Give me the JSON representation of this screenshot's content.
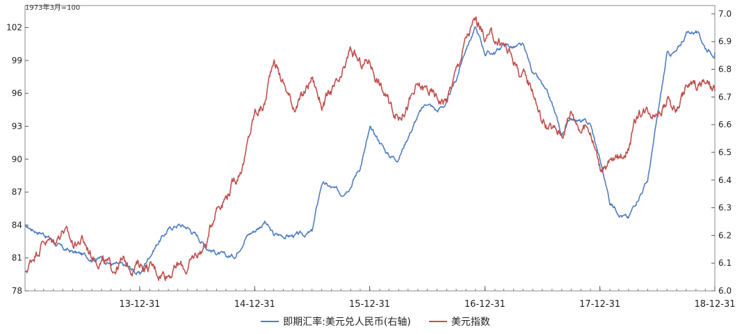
{
  "unit_label": "1973年3月=100",
  "chart_data": {
    "type": "line",
    "x_tick_labels": [
      "13-12-31",
      "14-12-31",
      "15-12-31",
      "16-12-31",
      "17-12-31",
      "18-12-31"
    ],
    "x_range": [
      "2013-01-01",
      "2018-12-31"
    ],
    "y_left": {
      "ticks": [
        78,
        81,
        84,
        87,
        90,
        93,
        96,
        99,
        102
      ],
      "range": [
        78,
        104
      ]
    },
    "y_right": {
      "ticks": [
        6.0,
        6.1,
        6.2,
        6.3,
        6.4,
        6.5,
        6.6,
        6.7,
        6.8,
        6.9,
        7.0
      ],
      "range": [
        6.0,
        7.03
      ]
    },
    "series": [
      {
        "name": "即期汇率:美元兑人民币(右轴)",
        "axis": "right",
        "color": "#4f7dbf",
        "points": [
          [
            "2013-01-01",
            6.23
          ],
          [
            "2013-02-01",
            6.22
          ],
          [
            "2013-03-01",
            6.21
          ],
          [
            "2013-04-01",
            6.18
          ],
          [
            "2013-05-01",
            6.15
          ],
          [
            "2013-06-01",
            6.14
          ],
          [
            "2013-07-01",
            6.13
          ],
          [
            "2013-08-01",
            6.12
          ],
          [
            "2013-09-01",
            6.12
          ],
          [
            "2013-10-01",
            6.1
          ],
          [
            "2013-11-01",
            6.09
          ],
          [
            "2013-12-01",
            6.08
          ],
          [
            "2014-01-01",
            6.06
          ],
          [
            "2014-02-01",
            6.13
          ],
          [
            "2014-03-01",
            6.18
          ],
          [
            "2014-04-01",
            6.22
          ],
          [
            "2014-05-01",
            6.24
          ],
          [
            "2014-06-01",
            6.23
          ],
          [
            "2014-07-01",
            6.2
          ],
          [
            "2014-08-01",
            6.16
          ],
          [
            "2014-09-01",
            6.14
          ],
          [
            "2014-10-01",
            6.12
          ],
          [
            "2014-11-01",
            6.13
          ],
          [
            "2014-12-01",
            6.2
          ],
          [
            "2015-01-01",
            6.22
          ],
          [
            "2015-02-01",
            6.25
          ],
          [
            "2015-03-01",
            6.2
          ],
          [
            "2015-04-01",
            6.2
          ],
          [
            "2015-05-01",
            6.2
          ],
          [
            "2015-06-01",
            6.2
          ],
          [
            "2015-07-01",
            6.21
          ],
          [
            "2015-08-01",
            6.39
          ],
          [
            "2015-09-01",
            6.37
          ],
          [
            "2015-10-01",
            6.35
          ],
          [
            "2015-11-01",
            6.39
          ],
          [
            "2015-12-01",
            6.45
          ],
          [
            "2016-01-01",
            6.58
          ],
          [
            "2016-02-01",
            6.54
          ],
          [
            "2016-03-01",
            6.49
          ],
          [
            "2016-04-01",
            6.48
          ],
          [
            "2016-05-01",
            6.56
          ],
          [
            "2016-06-01",
            6.63
          ],
          [
            "2016-07-01",
            6.68
          ],
          [
            "2016-08-01",
            6.65
          ],
          [
            "2016-09-01",
            6.68
          ],
          [
            "2016-10-01",
            6.76
          ],
          [
            "2016-11-01",
            6.88
          ],
          [
            "2016-12-01",
            6.95
          ],
          [
            "2017-01-01",
            6.86
          ],
          [
            "2017-02-01",
            6.86
          ],
          [
            "2017-03-01",
            6.89
          ],
          [
            "2017-04-01",
            6.88
          ],
          [
            "2017-05-01",
            6.88
          ],
          [
            "2017-06-01",
            6.79
          ],
          [
            "2017-07-01",
            6.74
          ],
          [
            "2017-08-01",
            6.67
          ],
          [
            "2017-09-01",
            6.56
          ],
          [
            "2017-10-01",
            6.63
          ],
          [
            "2017-11-01",
            6.61
          ],
          [
            "2017-12-01",
            6.6
          ],
          [
            "2018-01-01",
            6.47
          ],
          [
            "2018-02-01",
            6.32
          ],
          [
            "2018-03-01",
            6.29
          ],
          [
            "2018-04-01",
            6.26
          ],
          [
            "2018-05-01",
            6.34
          ],
          [
            "2018-06-01",
            6.4
          ],
          [
            "2018-07-01",
            6.62
          ],
          [
            "2018-08-01",
            6.85
          ],
          [
            "2018-09-01",
            6.86
          ],
          [
            "2018-10-01",
            6.93
          ],
          [
            "2018-11-01",
            6.94
          ],
          [
            "2018-12-01",
            6.88
          ],
          [
            "2018-12-31",
            6.86
          ]
        ]
      },
      {
        "name": "美元指数",
        "axis": "left",
        "color": "#c0504d",
        "points": [
          [
            "2013-01-01",
            79.5
          ],
          [
            "2013-02-01",
            81.5
          ],
          [
            "2013-03-01",
            82.8
          ],
          [
            "2013-04-01",
            82.4
          ],
          [
            "2013-05-01",
            83.8
          ],
          [
            "2013-06-01",
            82.2
          ],
          [
            "2013-07-01",
            82.7
          ],
          [
            "2013-08-01",
            81.4
          ],
          [
            "2013-09-01",
            80.9
          ],
          [
            "2013-10-01",
            79.9
          ],
          [
            "2013-11-01",
            80.6
          ],
          [
            "2013-12-01",
            80.3
          ],
          [
            "2014-01-01",
            80.5
          ],
          [
            "2014-02-01",
            80.2
          ],
          [
            "2014-03-01",
            79.7
          ],
          [
            "2014-04-01",
            79.8
          ],
          [
            "2014-05-01",
            80.3
          ],
          [
            "2014-06-01",
            80.0
          ],
          [
            "2014-07-01",
            81.3
          ],
          [
            "2014-08-01",
            82.4
          ],
          [
            "2014-09-01",
            85.9
          ],
          [
            "2014-10-01",
            86.8
          ],
          [
            "2014-11-01",
            88.2
          ],
          [
            "2014-12-01",
            90.3
          ],
          [
            "2015-01-01",
            94.2
          ],
          [
            "2015-02-01",
            95.0
          ],
          [
            "2015-03-01",
            99.4
          ],
          [
            "2015-04-01",
            97.0
          ],
          [
            "2015-05-01",
            95.0
          ],
          [
            "2015-06-01",
            95.5
          ],
          [
            "2015-07-01",
            97.5
          ],
          [
            "2015-08-01",
            95.0
          ],
          [
            "2015-09-01",
            96.0
          ],
          [
            "2015-10-01",
            96.8
          ],
          [
            "2015-11-01",
            99.8
          ],
          [
            "2015-12-01",
            98.5
          ],
          [
            "2016-01-01",
            99.0
          ],
          [
            "2016-02-01",
            97.0
          ],
          [
            "2016-03-01",
            95.0
          ],
          [
            "2016-04-01",
            94.0
          ],
          [
            "2016-05-01",
            95.2
          ],
          [
            "2016-06-01",
            96.4
          ],
          [
            "2016-07-01",
            96.3
          ],
          [
            "2016-08-01",
            95.5
          ],
          [
            "2016-09-01",
            95.5
          ],
          [
            "2016-10-01",
            98.0
          ],
          [
            "2016-11-01",
            101.0
          ],
          [
            "2016-12-01",
            102.5
          ],
          [
            "2017-01-01",
            101.2
          ],
          [
            "2017-02-01",
            100.9
          ],
          [
            "2017-03-01",
            100.5
          ],
          [
            "2017-04-01",
            99.1
          ],
          [
            "2017-05-01",
            97.5
          ],
          [
            "2017-06-01",
            96.5
          ],
          [
            "2017-07-01",
            93.5
          ],
          [
            "2017-08-01",
            92.6
          ],
          [
            "2017-09-01",
            92.4
          ],
          [
            "2017-10-01",
            94.5
          ],
          [
            "2017-11-01",
            93.0
          ],
          [
            "2017-12-01",
            92.8
          ],
          [
            "2018-01-01",
            89.3
          ],
          [
            "2018-02-01",
            89.6
          ],
          [
            "2018-03-01",
            89.9
          ],
          [
            "2018-04-01",
            91.5
          ],
          [
            "2018-05-01",
            94.0
          ],
          [
            "2018-06-01",
            94.6
          ],
          [
            "2018-07-01",
            94.6
          ],
          [
            "2018-08-01",
            95.3
          ],
          [
            "2018-09-01",
            94.6
          ],
          [
            "2018-10-01",
            96.5
          ],
          [
            "2018-11-01",
            96.8
          ],
          [
            "2018-12-01",
            97.0
          ],
          [
            "2018-12-31",
            96.2
          ]
        ]
      }
    ]
  }
}
